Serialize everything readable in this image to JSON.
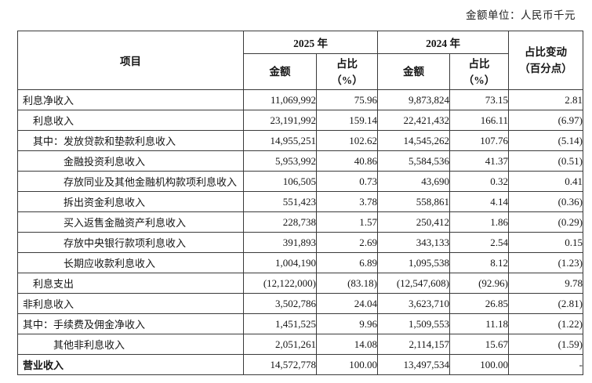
{
  "unit_note": "金额单位：人民币千元",
  "table": {
    "headers": {
      "item": "项目",
      "y2025": "2025 年",
      "y2024": "2024 年",
      "amount": "金额",
      "pct_line1": "占比",
      "pct_line2": "（%）",
      "change_line1": "占比变动",
      "change_line2": "（百分点）"
    },
    "rows": [
      {
        "label": "利息净收入",
        "indent": 0,
        "bold": false,
        "amt_2025": "11,069,992",
        "pct_2025": "75.96",
        "amt_2024": "9,873,824",
        "pct_2024": "73.15",
        "change": "2.81"
      },
      {
        "label": "利息收入",
        "indent": 1,
        "bold": false,
        "amt_2025": "23,191,992",
        "pct_2025": "159.14",
        "amt_2024": "22,421,432",
        "pct_2024": "166.11",
        "change": "(6.97)"
      },
      {
        "label": "其中：发放贷款和垫款利息收入",
        "indent": 1,
        "bold": false,
        "amt_2025": "14,955,251",
        "pct_2025": "102.62",
        "amt_2024": "14,545,262",
        "pct_2024": "107.76",
        "change": "(5.14)"
      },
      {
        "label": "金融投资利息收入",
        "indent": 3,
        "bold": false,
        "amt_2025": "5,953,992",
        "pct_2025": "40.86",
        "amt_2024": "5,584,536",
        "pct_2024": "41.37",
        "change": "(0.51)"
      },
      {
        "label": "存放同业及其他金融机构款项利息收入",
        "indent": 3,
        "bold": false,
        "amt_2025": "106,505",
        "pct_2025": "0.73",
        "amt_2024": "43,690",
        "pct_2024": "0.32",
        "change": "0.41"
      },
      {
        "label": "拆出资金利息收入",
        "indent": 3,
        "bold": false,
        "amt_2025": "551,423",
        "pct_2025": "3.78",
        "amt_2024": "558,861",
        "pct_2024": "4.14",
        "change": "(0.36)"
      },
      {
        "label": "买入返售金融资产利息收入",
        "indent": 3,
        "bold": false,
        "amt_2025": "228,738",
        "pct_2025": "1.57",
        "amt_2024": "250,412",
        "pct_2024": "1.86",
        "change": "(0.29)"
      },
      {
        "label": "存放中央银行款项利息收入",
        "indent": 3,
        "bold": false,
        "amt_2025": "391,893",
        "pct_2025": "2.69",
        "amt_2024": "343,133",
        "pct_2024": "2.54",
        "change": "0.15"
      },
      {
        "label": "长期应收款利息收入",
        "indent": 3,
        "bold": false,
        "amt_2025": "1,004,190",
        "pct_2025": "6.89",
        "amt_2024": "1,095,538",
        "pct_2024": "8.12",
        "change": "(1.23)"
      },
      {
        "label": "利息支出",
        "indent": 1,
        "bold": false,
        "amt_2025": "(12,122,000)",
        "pct_2025": "(83.18)",
        "amt_2024": "(12,547,608)",
        "pct_2024": "(92.96)",
        "change": "9.78"
      },
      {
        "label": "非利息收入",
        "indent": 0,
        "bold": false,
        "amt_2025": "3,502,786",
        "pct_2025": "24.04",
        "amt_2024": "3,623,710",
        "pct_2024": "26.85",
        "change": "(2.81)"
      },
      {
        "label": "其中：手续费及佣金净收入",
        "indent": 0,
        "bold": false,
        "amt_2025": "1,451,525",
        "pct_2025": "9.96",
        "amt_2024": "1,509,553",
        "pct_2024": "11.18",
        "change": "(1.22)"
      },
      {
        "label": "其他非利息收入",
        "indent": 2,
        "bold": false,
        "amt_2025": "2,051,261",
        "pct_2025": "14.08",
        "amt_2024": "2,114,157",
        "pct_2024": "15.67",
        "change": "(1.59)"
      },
      {
        "label": "营业收入",
        "indent": 0,
        "bold": true,
        "amt_2025": "14,572,778",
        "pct_2025": "100.00",
        "amt_2024": "13,497,534",
        "pct_2024": "100.00",
        "change": "-"
      }
    ]
  }
}
